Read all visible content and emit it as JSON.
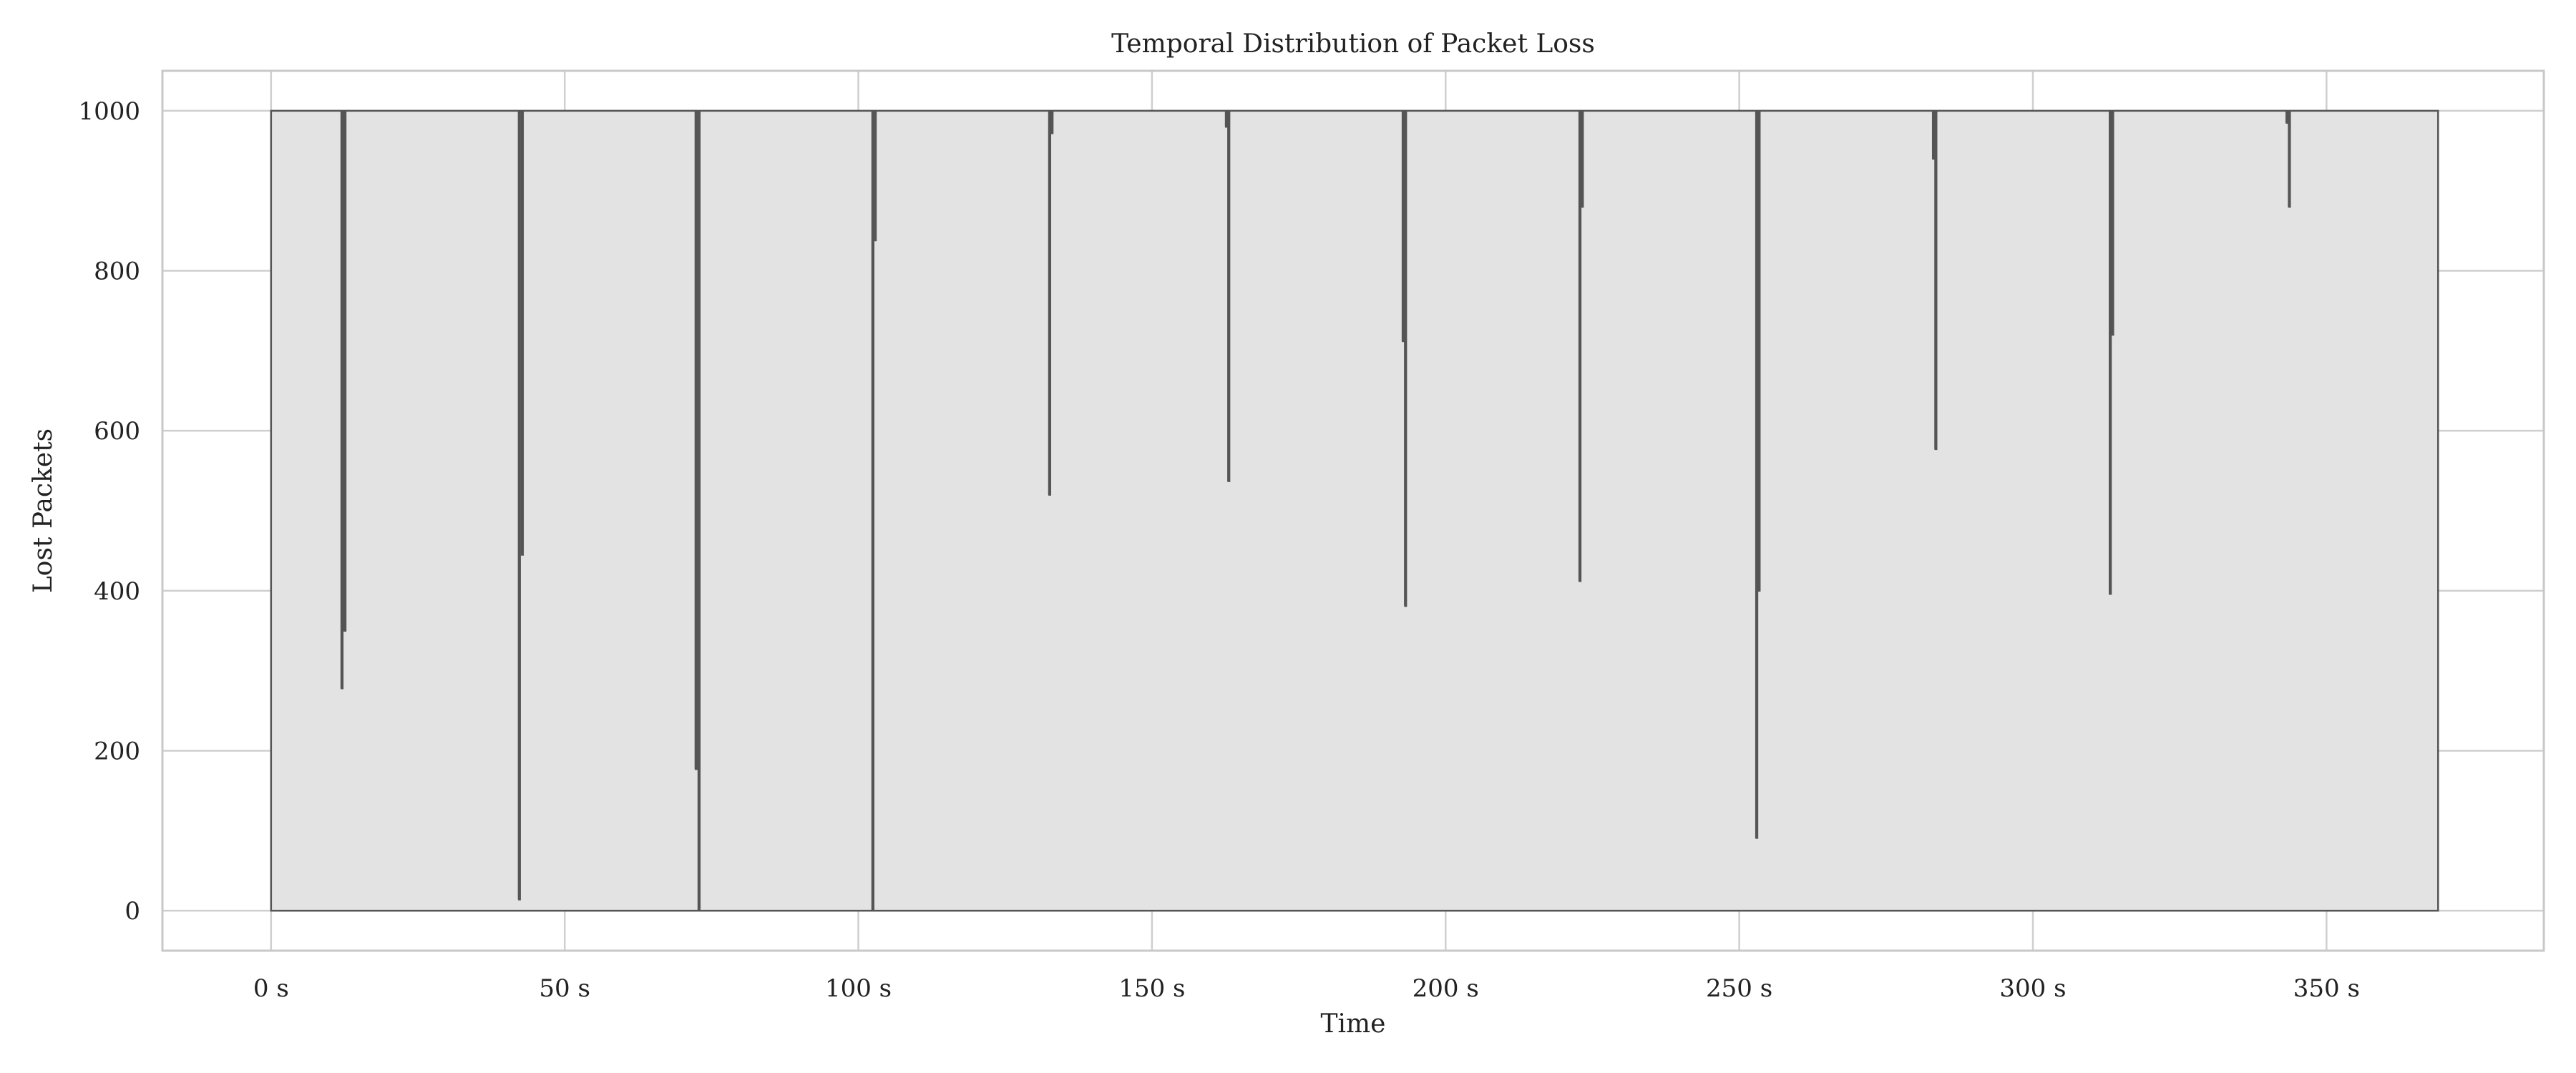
{
  "chart_data": {
    "type": "area",
    "title": "Temporal Distribution of Packet Loss",
    "xlabel": "Time",
    "ylabel": "Lost Packets",
    "xlim": [
      -18.5,
      387
    ],
    "ylim": [
      -50,
      1050
    ],
    "x_ticks": [
      0,
      50,
      100,
      150,
      200,
      250,
      300,
      350
    ],
    "x_tick_labels": [
      "0 s",
      "50 s",
      "100 s",
      "150 s",
      "200 s",
      "250 s",
      "300 s",
      "350 s"
    ],
    "y_ticks": [
      0,
      200,
      400,
      600,
      800,
      1000
    ],
    "y_tick_labels": [
      "0",
      "200",
      "400",
      "600",
      "800",
      "1000"
    ],
    "grid": true,
    "baseline": 1000,
    "x_range": [
      0,
      369
    ],
    "dips": [
      {
        "x": 12.0,
        "y": 278
      },
      {
        "x": 12.5,
        "y": 350
      },
      {
        "x": 42.2,
        "y": 14
      },
      {
        "x": 42.7,
        "y": 445
      },
      {
        "x": 72.3,
        "y": 177
      },
      {
        "x": 72.8,
        "y": 0
      },
      {
        "x": 102.4,
        "y": 0
      },
      {
        "x": 102.8,
        "y": 838
      },
      {
        "x": 132.5,
        "y": 520
      },
      {
        "x": 132.9,
        "y": 972
      },
      {
        "x": 162.6,
        "y": 980
      },
      {
        "x": 163.0,
        "y": 537
      },
      {
        "x": 192.7,
        "y": 712
      },
      {
        "x": 193.1,
        "y": 381
      },
      {
        "x": 222.8,
        "y": 412
      },
      {
        "x": 223.2,
        "y": 880
      },
      {
        "x": 252.9,
        "y": 91
      },
      {
        "x": 253.3,
        "y": 400
      },
      {
        "x": 283.0,
        "y": 940
      },
      {
        "x": 283.4,
        "y": 577
      },
      {
        "x": 313.1,
        "y": 396
      },
      {
        "x": 313.5,
        "y": 720
      },
      {
        "x": 343.2,
        "y": 985
      },
      {
        "x": 343.6,
        "y": 880
      }
    ],
    "colors": {
      "fill": "#e3e3e3",
      "line": "#555555"
    }
  }
}
